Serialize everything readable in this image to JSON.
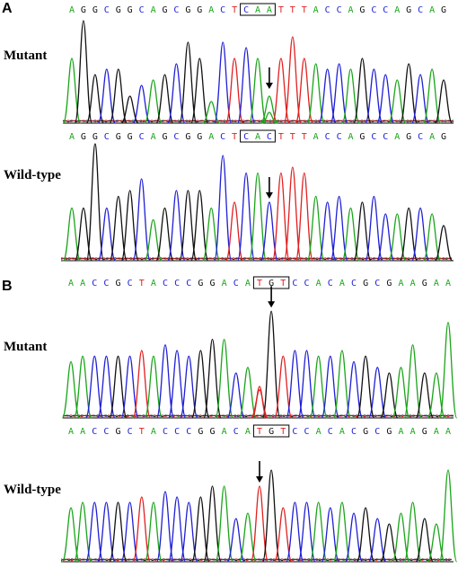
{
  "colors": {
    "A": "#1aa51a",
    "C": "#1f1fd6",
    "G": "#111111",
    "T": "#e02020"
  },
  "panels": [
    {
      "letter": "A",
      "tracks": [
        {
          "label": "Mutant",
          "sequence": "AGGCGGCAGCGGACTCAATTTACCAGCCAGCAG",
          "boxed_bases": [
            15,
            16,
            17
          ],
          "arrow_base": 17,
          "peaks": [
            0.6,
            0.95,
            0.45,
            0.5,
            0.5,
            0.25,
            0.35,
            0.4,
            0.45,
            0.55,
            0.75,
            0.6,
            0.2,
            0.75,
            0.6,
            0.7,
            0.6,
            0.25,
            0.6,
            0.8,
            0.6,
            0.55,
            0.5,
            0.55,
            0.5,
            0.6,
            0.5,
            0.45,
            0.4,
            0.55,
            0.45,
            0.5,
            0.4
          ],
          "dual": [
            [
              17,
              "A",
              0.1
            ]
          ]
        },
        {
          "label": "Wild-type",
          "sequence": "AGGCGGCAGCGGACTCACTTTACCAGCCAGCAG",
          "boxed_bases": [
            15,
            16,
            17
          ],
          "arrow_base": 17,
          "peaks": [
            0.45,
            0.45,
            1.0,
            0.45,
            0.55,
            0.6,
            0.7,
            0.35,
            0.45,
            0.6,
            0.6,
            0.6,
            0.45,
            0.9,
            0.5,
            0.75,
            0.75,
            0.5,
            0.75,
            0.8,
            0.75,
            0.55,
            0.5,
            0.55,
            0.45,
            0.5,
            0.55,
            0.4,
            0.4,
            0.45,
            0.45,
            0.4,
            0.3
          ]
        }
      ]
    },
    {
      "letter": "B",
      "tracks": [
        {
          "label": "Mutant",
          "sequence": "AACCGCTACCCGGACATGTCCACACGCGAAGAA",
          "boxed_bases": [
            16,
            17,
            18
          ],
          "arrow_base": 17,
          "peaks": [
            0.5,
            0.55,
            0.55,
            0.55,
            0.55,
            0.55,
            0.6,
            0.55,
            0.65,
            0.6,
            0.55,
            0.6,
            0.7,
            0.7,
            0.4,
            0.45,
            0.25,
            0.95,
            0.55,
            0.6,
            0.6,
            0.55,
            0.55,
            0.6,
            0.5,
            0.55,
            0.45,
            0.4,
            0.45,
            0.65,
            0.4,
            0.4,
            0.85
          ],
          "dual": [
            [
              16,
              "T",
              0.28
            ]
          ]
        },
        {
          "label": "Wild-type",
          "sequence": "AACCGCTACCCGGACATGTCCACACGCGAAGAA",
          "boxed_bases": [
            16,
            17,
            18
          ],
          "arrow_base": 16,
          "peaks": [
            0.5,
            0.55,
            0.55,
            0.55,
            0.55,
            0.55,
            0.6,
            0.55,
            0.65,
            0.6,
            0.55,
            0.6,
            0.7,
            0.7,
            0.4,
            0.45,
            0.7,
            0.85,
            0.5,
            0.55,
            0.55,
            0.55,
            0.5,
            0.55,
            0.45,
            0.5,
            0.4,
            0.35,
            0.45,
            0.55,
            0.4,
            0.35,
            0.85
          ]
        }
      ]
    }
  ]
}
